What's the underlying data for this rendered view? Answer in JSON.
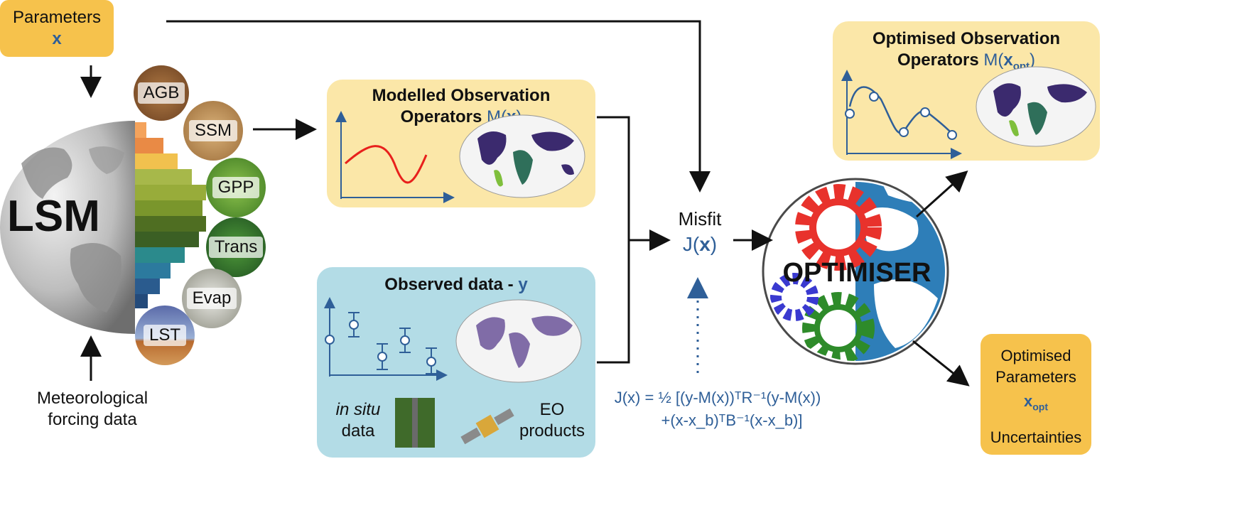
{
  "parameters": {
    "label": "Parameters",
    "symbol": "x"
  },
  "lsm": {
    "label": "LSM"
  },
  "circles": [
    {
      "label": "AGB",
      "color": "#8b5a2b"
    },
    {
      "label": "SSM",
      "color": "#c69a5c"
    },
    {
      "label": "GPP",
      "color": "#4e8a2c"
    },
    {
      "label": "Trans",
      "color": "#2f6b2a"
    },
    {
      "label": "Evap",
      "color": "#b9b9b1"
    },
    {
      "label": "LST",
      "color": "#5a6aa8"
    }
  ],
  "meteo": {
    "line1": "Meteorological",
    "line2": "forcing data"
  },
  "modelled": {
    "title_line1": "Modelled Observation",
    "title_line2": "Operators",
    "math_prefix": "M(",
    "math_var": "x",
    "math_suffix": ")"
  },
  "observed": {
    "title": "Observed data - ",
    "symbol": "y",
    "insitu_italic": "in situ",
    "insitu_rest": "data",
    "eo_line1": "EO",
    "eo_line2": "products"
  },
  "misfit": {
    "label": "Misfit",
    "func_prefix": "J(",
    "func_var": "x",
    "func_suffix": ")"
  },
  "optimiser": {
    "label": "OPTIMISER"
  },
  "optimised_ops": {
    "title_line1": "Optimised Observation",
    "title_line2": "Operators",
    "math": "M(",
    "math_var": "x",
    "math_sub": "opt",
    "math_suffix": ")"
  },
  "optimised_params": {
    "line1": "Optimised",
    "line2": "Parameters",
    "symbol": "x",
    "sub": "opt",
    "line4": "Uncertainties"
  },
  "cost_function": {
    "line1": "J(x) = ½ [(y-M(x))ᵀR⁻¹(y-M(x))",
    "line2": "+(x-x_b)ᵀB⁻¹(x-x_b)]"
  },
  "colors": {
    "accent_blue": "#2f5f98",
    "yellow_box": "#fbe7a8",
    "orange_box": "#f6c24c",
    "cyan_box": "#b3dce6"
  }
}
